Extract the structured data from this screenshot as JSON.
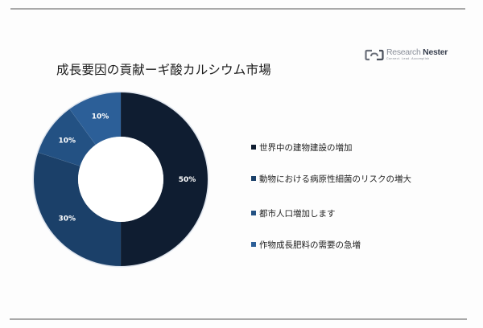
{
  "logo": {
    "name_light": "Research",
    "name_bold": "Nester",
    "tagline": "Connect. Lead. Accomplish"
  },
  "title": "成長要因の貢献ーギ酸カルシウム市場",
  "chart_data": {
    "type": "pie",
    "variant": "donut",
    "title": "成長要因の貢献ーギ酸カルシウム市場",
    "categories": [
      "世界中の建物建設の増加",
      "動物における病原性細菌のリスクの増大",
      "都市人口増加します",
      "作物成長肥料の需要の急増"
    ],
    "values": [
      50,
      30,
      10,
      10
    ],
    "labels": [
      "50%",
      "30%",
      "10%",
      "10%"
    ],
    "colors": [
      "#0f1d31",
      "#1b4069",
      "#235183",
      "#2c5f98"
    ],
    "start_angle_deg": 0,
    "direction": "clockwise",
    "legend_position": "right",
    "center": [
      150,
      223
    ],
    "outer_radius": 108,
    "inner_radius": 53
  },
  "legend": {
    "items": [
      {
        "label": "世界中の建物建設の増加",
        "color": "#0f1d31"
      },
      {
        "label": "動物における病原性細菌のリスクの増大",
        "color": "#1b4069"
      },
      {
        "label": "都市人口増加します",
        "color": "#235183"
      },
      {
        "label": "作物成長肥料の需要の急増",
        "color": "#2c5f98"
      }
    ]
  }
}
